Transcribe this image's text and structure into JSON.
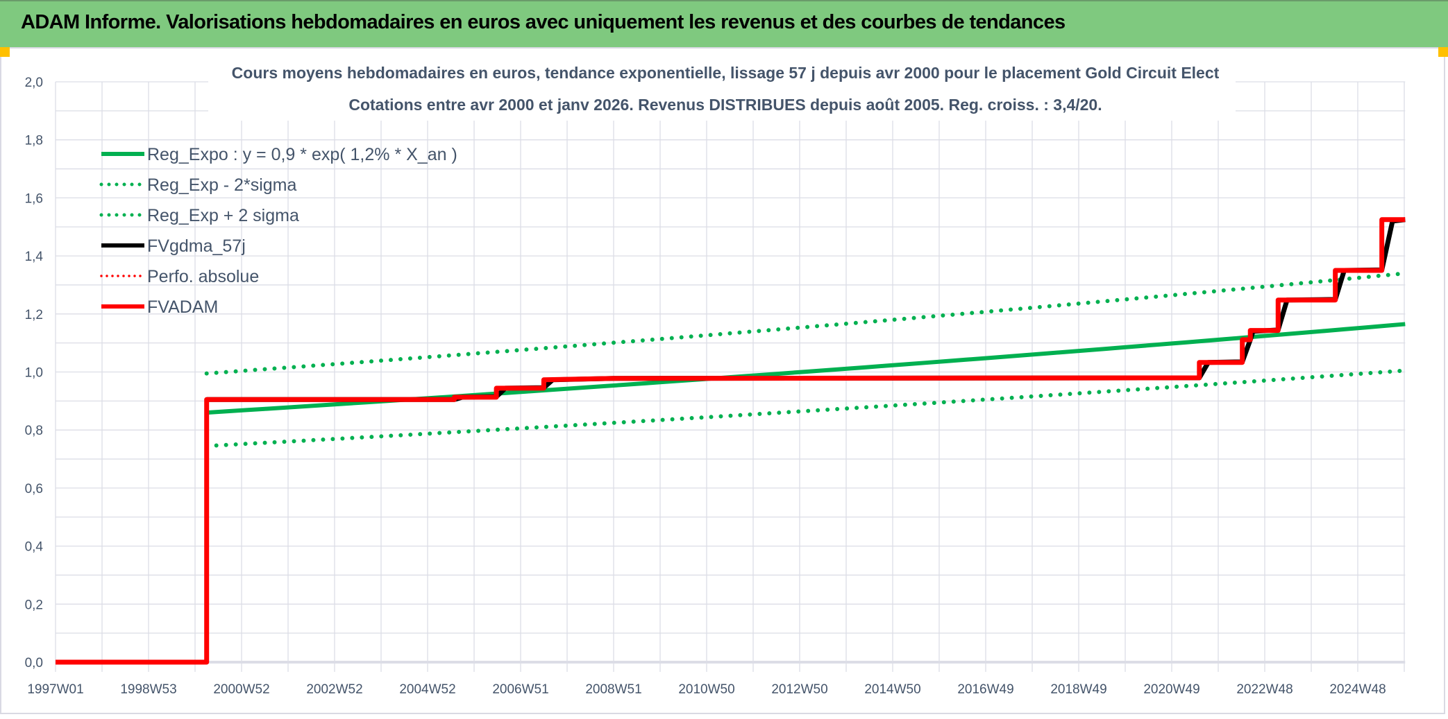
{
  "header": {
    "title": "ADAM Informe. Valorisations hebdomadaires en euros avec uniquement les revenus et des courbes de tendances"
  },
  "chart_data": {
    "type": "line",
    "title": "Cours moyens hebdomadaires en euros, tendance exponentielle, lissage 57 j depuis avr 2000 pour le placement Gold Circuit Elect",
    "subtitle": "Cotations entre avr 2000 et janv 2026. Revenus DISTRIBUES depuis août 2005. Reg. croiss. : 3,4/20.",
    "xlabel": "",
    "ylabel": "",
    "x_ticks": [
      "1997W01",
      "1998W53",
      "2000W52",
      "2002W52",
      "2004W52",
      "2006W51",
      "2008W51",
      "2010W50",
      "2012W50",
      "2014W50",
      "2016W49",
      "2018W49",
      "2020W49",
      "2022W48",
      "2024W48"
    ],
    "y_ticks": [
      "0,0",
      "0,2",
      "0,4",
      "0,6",
      "0,8",
      "1,0",
      "1,2",
      "1,4",
      "1,6",
      "1,8",
      "2,0"
    ],
    "ylim": [
      0,
      2.0
    ],
    "xlim": [
      "1997W01",
      "2026W02"
    ],
    "grid": true,
    "legend_position": "top-left",
    "series": [
      {
        "name": "Reg_Expo : y = 0,9 * exp( 1,2% *  X_an )",
        "color": "#00B050",
        "style": "solid",
        "interp": "exponential",
        "points": [
          [
            "2000W14",
            0.86
          ],
          [
            "2026W02",
            1.165
          ]
        ]
      },
      {
        "name": "Reg_Exp - 2*sigma",
        "color": "#00B050",
        "style": "dotted",
        "interp": "exponential",
        "points": [
          [
            "2000W14",
            0.745
          ],
          [
            "2026W02",
            1.005
          ]
        ]
      },
      {
        "name": "Reg_Exp + 2 sigma",
        "color": "#00B050",
        "style": "dotted",
        "interp": "exponential",
        "points": [
          [
            "2000W14",
            0.995
          ],
          [
            "2026W02",
            1.34
          ]
        ]
      },
      {
        "name": "FVgdma_57j",
        "color": "#000000",
        "style": "solid",
        "interp": "linear",
        "points": [
          [
            "2000W14",
            0.905
          ],
          [
            "2005W31",
            0.905
          ],
          [
            "2005W40",
            0.913
          ],
          [
            "2006W26",
            0.915
          ],
          [
            "2006W36",
            0.944
          ],
          [
            "2007W27",
            0.946
          ],
          [
            "2007W37",
            0.973
          ],
          [
            "2009W01",
            0.978
          ],
          [
            "2021W32",
            0.98
          ],
          [
            "2021W42",
            1.033
          ],
          [
            "2022W28",
            1.035
          ],
          [
            "2022W37",
            1.111
          ],
          [
            "2022W40",
            1.14
          ],
          [
            "2023W16",
            1.145
          ],
          [
            "2023W26",
            1.248
          ],
          [
            "2024W28",
            1.25
          ],
          [
            "2024W38",
            1.35
          ],
          [
            "2025W28",
            1.352
          ],
          [
            "2025W40",
            1.52
          ],
          [
            "2026W02",
            1.525
          ]
        ]
      },
      {
        "name": "Perfo. absolue",
        "color": "#FF0000",
        "style": "dotted",
        "points": []
      },
      {
        "name": "FVADAM",
        "color": "#FF0000",
        "style": "step",
        "points": [
          [
            "1997W01",
            0
          ],
          [
            "2000W14",
            0
          ],
          [
            "2000W14",
            0.905
          ],
          [
            "2005W31",
            0.905
          ],
          [
            "2005W31",
            0.913
          ],
          [
            "2006W26",
            0.913
          ],
          [
            "2006W26",
            0.944
          ],
          [
            "2007W27",
            0.944
          ],
          [
            "2007W27",
            0.973
          ],
          [
            "2009W01",
            0.978
          ],
          [
            "2021W32",
            0.98
          ],
          [
            "2021W32",
            1.033
          ],
          [
            "2022W28",
            1.033
          ],
          [
            "2022W28",
            1.111
          ],
          [
            "2022W37",
            1.111
          ],
          [
            "2022W37",
            1.143
          ],
          [
            "2023W16",
            1.143
          ],
          [
            "2023W16",
            1.248
          ],
          [
            "2024W28",
            1.248
          ],
          [
            "2024W28",
            1.35
          ],
          [
            "2025W28",
            1.35
          ],
          [
            "2025W28",
            1.525
          ],
          [
            "2026W02",
            1.525
          ]
        ]
      }
    ]
  }
}
